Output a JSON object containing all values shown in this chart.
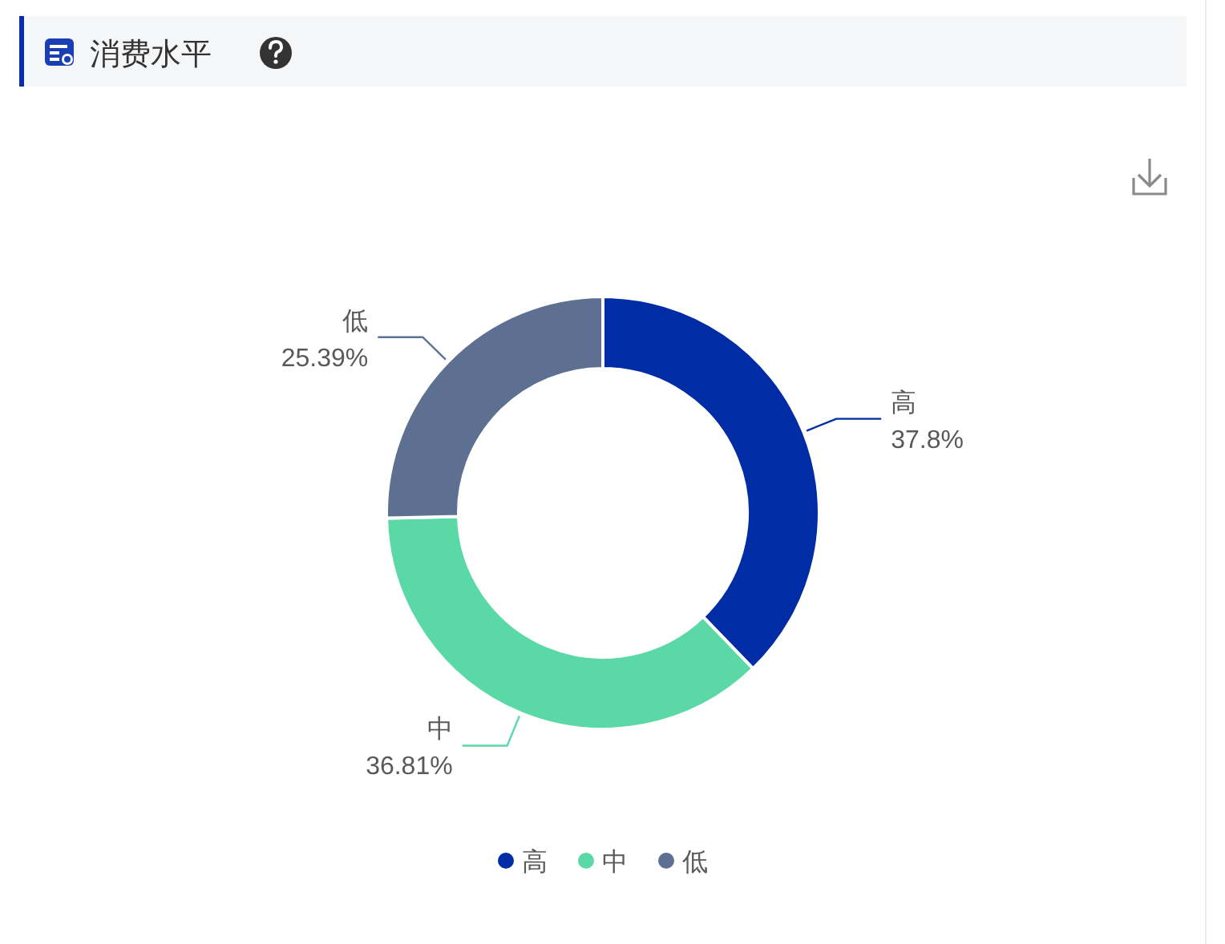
{
  "chart_data": {
    "type": "donut",
    "title": "消费水平",
    "categories": [
      "高",
      "中",
      "低"
    ],
    "values": [
      37.8,
      36.81,
      25.39
    ],
    "colors": [
      "#002ca6",
      "#5ad8a6",
      "#5d7092"
    ],
    "value_labels": [
      "37.8%",
      "36.81%",
      "25.39%"
    ],
    "legend": "bottom"
  }
}
